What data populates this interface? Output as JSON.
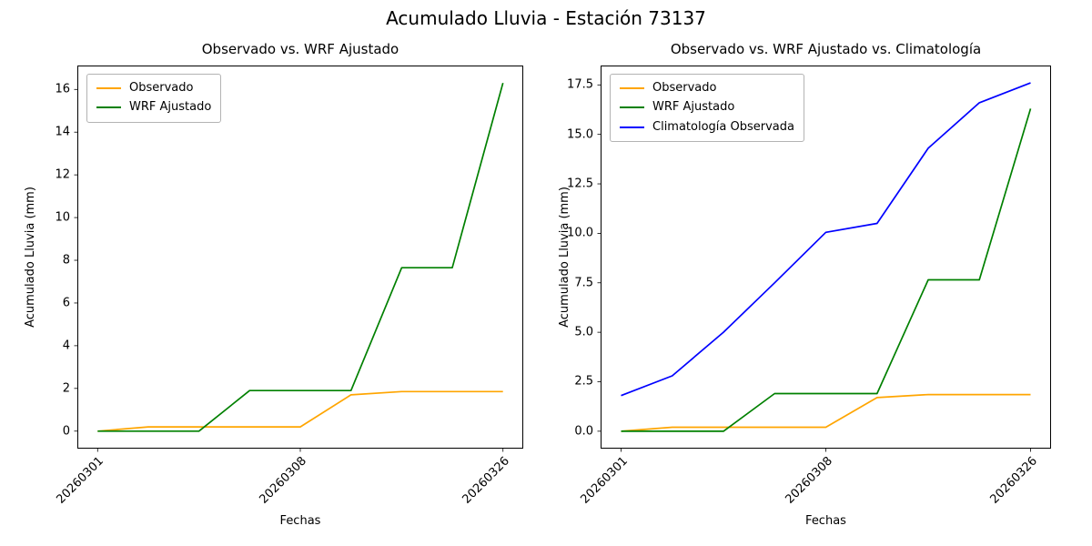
{
  "figure": {
    "title": "Acumulado Lluvia - Estación 73137"
  },
  "chart_data": [
    {
      "type": "line",
      "title": "Observado vs. WRF Ajustado",
      "xlabel": "Fechas",
      "ylabel": "Acumulado Lluvia (mm)",
      "legend_position": "upper left",
      "grid": false,
      "x_count": 9,
      "x_tick_positions": [
        0,
        4,
        8
      ],
      "x_tick_labels": [
        "20260301",
        "20260308",
        "20260326"
      ],
      "y_ticks": [
        0,
        2,
        4,
        6,
        8,
        10,
        12,
        14,
        16
      ],
      "y_tick_labels": [
        "0",
        "2",
        "4",
        "6",
        "8",
        "10",
        "12",
        "14",
        "16"
      ],
      "ylim": [
        -0.82,
        17.12
      ],
      "series": [
        {
          "name": "Observado",
          "color": "#ffa500",
          "values": [
            0,
            0.2,
            0.2,
            0.2,
            0.2,
            1.7,
            1.85,
            1.85,
            1.85
          ]
        },
        {
          "name": "WRF Ajustado",
          "color": "#008000",
          "values": [
            0,
            0,
            0,
            1.9,
            1.9,
            1.9,
            7.65,
            7.65,
            16.3
          ]
        }
      ]
    },
    {
      "type": "line",
      "title": "Observado vs. WRF Ajustado vs. Climatología",
      "xlabel": "Fechas",
      "ylabel": "Acumulado Lluvia (mm)",
      "legend_position": "upper left",
      "grid": false,
      "x_count": 9,
      "x_tick_positions": [
        0,
        4,
        8
      ],
      "x_tick_labels": [
        "20260301",
        "20260308",
        "20260326"
      ],
      "y_ticks": [
        0,
        2.5,
        5,
        7.5,
        10,
        12.5,
        15,
        17.5
      ],
      "y_tick_labels": [
        "0.0",
        "2.5",
        "5.0",
        "7.5",
        "10.0",
        "12.5",
        "15.0",
        "17.5"
      ],
      "ylim": [
        -0.88,
        18.48
      ],
      "series": [
        {
          "name": "Observado",
          "color": "#ffa500",
          "values": [
            0,
            0.2,
            0.2,
            0.2,
            0.2,
            1.7,
            1.85,
            1.85,
            1.85
          ]
        },
        {
          "name": "WRF Ajustado",
          "color": "#008000",
          "values": [
            0,
            0,
            0,
            1.9,
            1.9,
            1.9,
            7.65,
            7.65,
            16.3
          ]
        },
        {
          "name": "Climatología Observada",
          "color": "#0000ff",
          "values": [
            1.8,
            2.8,
            5.0,
            7.5,
            10.05,
            10.5,
            14.3,
            16.6,
            17.6
          ]
        }
      ]
    }
  ]
}
